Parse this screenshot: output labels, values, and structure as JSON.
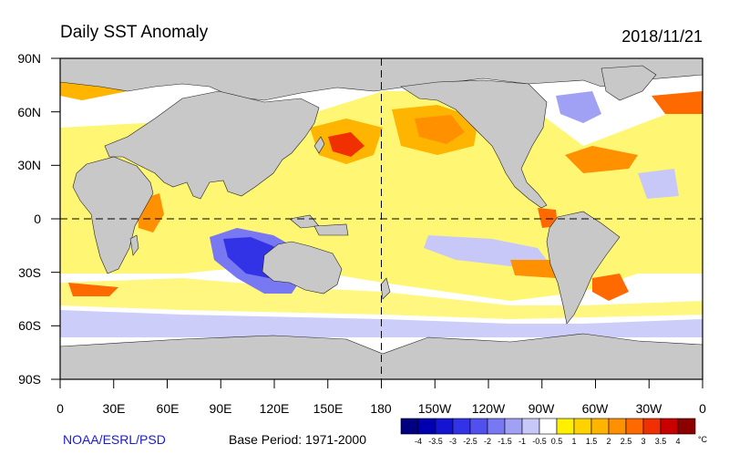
{
  "title": "Daily SST Anomaly",
  "date": "2018/11/21",
  "credit": "NOAA/ESRL/PSD",
  "base_period": "Base Period: 1971-2000",
  "lat_labels": [
    "90N",
    "60N",
    "30N",
    "0",
    "30S",
    "60S",
    "90S"
  ],
  "lon_labels": [
    "0",
    "30E",
    "60E",
    "90E",
    "120E",
    "150E",
    "180",
    "150W",
    "120W",
    "90W",
    "60W",
    "30W",
    "0"
  ],
  "colorbar": {
    "unit": "°C",
    "labels": [
      "-4",
      "-3.5",
      "-3",
      "-2.5",
      "-2",
      "-1.5",
      "-1",
      "-0.5",
      "0.5",
      "1",
      "1.5",
      "2",
      "2.5",
      "3",
      "3.5",
      "4"
    ],
    "colors": [
      "#000080",
      "#0000b0",
      "#1414d2",
      "#3232e6",
      "#5050ee",
      "#7878f2",
      "#a0a0f4",
      "#c8c8f8",
      "#ffffff",
      "#fff000",
      "#ffd200",
      "#ffb400",
      "#ff9000",
      "#ff6a00",
      "#f03000",
      "#c80000",
      "#8c0000"
    ]
  },
  "colors": {
    "land": "#c8c8c8",
    "ocean_neutral": "#ffffff",
    "grid": "#000000"
  }
}
